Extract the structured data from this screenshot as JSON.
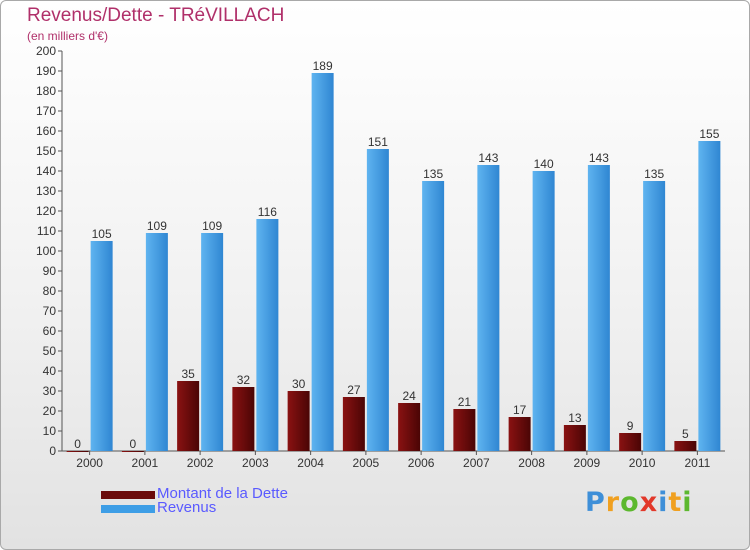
{
  "chart_data": {
    "type": "bar",
    "title": "Revenus/Dette - TRéVILLACH",
    "subtitle": "(en milliers d'€)",
    "categories": [
      "2000",
      "2001",
      "2002",
      "2003",
      "2004",
      "2005",
      "2006",
      "2007",
      "2008",
      "2009",
      "2010",
      "2011"
    ],
    "series": [
      {
        "name": "Montant de la Dette",
        "color": "#6b0a0a",
        "values": [
          0,
          0,
          35,
          32,
          30,
          27,
          24,
          21,
          17,
          13,
          9,
          5
        ]
      },
      {
        "name": "Revenus",
        "color": "#3e9ee6",
        "values": [
          105,
          109,
          109,
          116,
          189,
          151,
          135,
          143,
          140,
          143,
          135,
          155
        ]
      }
    ],
    "ylim": [
      0,
      200
    ],
    "ytick_step": 10,
    "grid": false,
    "legend_position": "bottom-left"
  },
  "legend": {
    "debt_label": "Montant de la Dette",
    "revenue_label": "Revenus",
    "debt_color": "#6b0a0a",
    "revenue_color": "#3e9ee6"
  },
  "brand": {
    "letters": [
      "P",
      "r",
      "o",
      "x",
      "i",
      "t",
      "i"
    ],
    "colors": [
      "#3e8fd8",
      "#f0a020",
      "#5cb82e",
      "#e2382a",
      "#3e8fd8",
      "#f0a020",
      "#5cb82e"
    ]
  }
}
